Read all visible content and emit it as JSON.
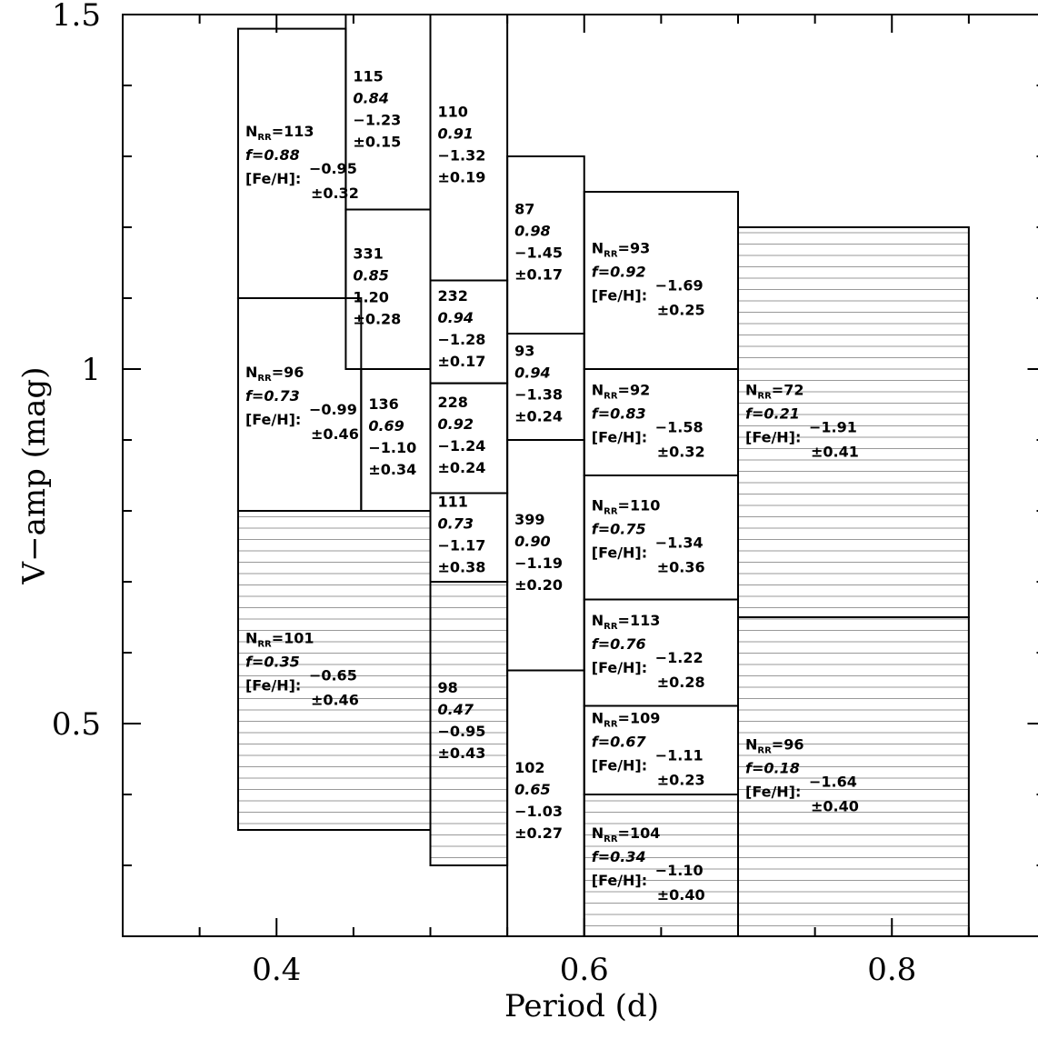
{
  "chart_data": {
    "type": "box-grid",
    "xlabel": "Period (d)",
    "ylabel": "V−amp (mag)",
    "xlim": [
      0.3,
      0.9
    ],
    "ylim": [
      0.2,
      1.5
    ],
    "xticks": [
      0.4,
      0.6,
      0.8
    ],
    "yticks": [
      0.5,
      1,
      1.5
    ],
    "xminorticks": [
      0.35,
      0.45,
      0.5,
      0.55,
      0.65,
      0.7,
      0.75,
      0.85
    ],
    "yminorticks": [
      0.3,
      0.4,
      0.6,
      0.7,
      0.8,
      0.9,
      1.1,
      1.2,
      1.3,
      1.4
    ],
    "labels": {
      "n": "N",
      "n_sub": "RR",
      "eq": "=",
      "f": "f=",
      "feh": "[Fe/H]:"
    },
    "bins": [
      {
        "period": [
          0.375,
          0.445
        ],
        "amp": [
          1.1,
          1.48
        ],
        "n": "113",
        "f": "0.88",
        "feh": "−0.95",
        "sigma": "±0.32",
        "labeled": true,
        "hatched": false
      },
      {
        "period": [
          0.445,
          0.5
        ],
        "amp": [
          1.225,
          1.5
        ],
        "n": "115",
        "f": "0.84",
        "feh": "−1.23",
        "sigma": "±0.15",
        "labeled": false,
        "hatched": false
      },
      {
        "period": [
          0.445,
          0.5
        ],
        "amp": [
          1.0,
          1.225
        ],
        "n": "331",
        "f": "0.85",
        "feh": "1.20",
        "sigma": "±0.28",
        "labeled": false,
        "hatched": false
      },
      {
        "period": [
          0.375,
          0.455
        ],
        "amp": [
          0.8,
          1.1
        ],
        "n": "96",
        "f": "0.73",
        "feh": "−0.99",
        "sigma": "±0.46",
        "labeled": true,
        "hatched": false
      },
      {
        "period": [
          0.455,
          0.5
        ],
        "amp": [
          0.8,
          1.0
        ],
        "n": "136",
        "f": "0.69",
        "feh": "−1.10",
        "sigma": "±0.34",
        "labeled": false,
        "hatched": false
      },
      {
        "period": [
          0.375,
          0.5
        ],
        "amp": [
          0.35,
          0.8
        ],
        "n": "101",
        "f": "0.35",
        "feh": "−0.65",
        "sigma": "±0.46",
        "labeled": true,
        "hatched": true
      },
      {
        "period": [
          0.5,
          0.55
        ],
        "amp": [
          1.125,
          1.5
        ],
        "n": "110",
        "f": "0.91",
        "feh": "−1.32",
        "sigma": "±0.19",
        "labeled": false,
        "hatched": false
      },
      {
        "period": [
          0.5,
          0.55
        ],
        "amp": [
          0.98,
          1.125
        ],
        "n": "232",
        "f": "0.94",
        "feh": "−1.28",
        "sigma": "±0.17",
        "labeled": false,
        "hatched": false
      },
      {
        "period": [
          0.5,
          0.55
        ],
        "amp": [
          0.825,
          0.98
        ],
        "n": "228",
        "f": "0.92",
        "feh": "−1.24",
        "sigma": "±0.24",
        "labeled": false,
        "hatched": false
      },
      {
        "period": [
          0.5,
          0.55
        ],
        "amp": [
          0.7,
          0.825
        ],
        "n": "111",
        "f": "0.73",
        "feh": "−1.17",
        "sigma": "±0.38",
        "labeled": false,
        "hatched": false
      },
      {
        "period": [
          0.5,
          0.55
        ],
        "amp": [
          0.3,
          0.7
        ],
        "n": "98",
        "f": "0.47",
        "feh": "−0.95",
        "sigma": "±0.43",
        "labeled": false,
        "hatched": true
      },
      {
        "period": [
          0.55,
          0.6
        ],
        "amp": [
          1.05,
          1.3
        ],
        "n": "87",
        "f": "0.98",
        "feh": "−1.45",
        "sigma": "±0.17",
        "labeled": false,
        "hatched": false
      },
      {
        "period": [
          0.55,
          0.6
        ],
        "amp": [
          0.9,
          1.05
        ],
        "n": "93",
        "f": "0.94",
        "feh": "−1.38",
        "sigma": "±0.24",
        "labeled": false,
        "hatched": false
      },
      {
        "period": [
          0.55,
          0.6
        ],
        "amp": [
          0.575,
          0.9
        ],
        "n": "399",
        "f": "0.90",
        "feh": "−1.19",
        "sigma": "±0.20",
        "labeled": false,
        "hatched": false
      },
      {
        "period": [
          0.55,
          0.6
        ],
        "amp": [
          0.2,
          0.575
        ],
        "n": "102",
        "f": "0.65",
        "feh": "−1.03",
        "sigma": "±0.27",
        "labeled": false,
        "hatched": false
      },
      {
        "period": [
          0.6,
          0.7
        ],
        "amp": [
          1.0,
          1.25
        ],
        "n": "93",
        "f": "0.92",
        "feh": "−1.69",
        "sigma": "±0.25",
        "labeled": true,
        "hatched": false
      },
      {
        "period": [
          0.6,
          0.7
        ],
        "amp": [
          0.85,
          1.0
        ],
        "n": "92",
        "f": "0.83",
        "feh": "−1.58",
        "sigma": "±0.32",
        "labeled": true,
        "hatched": false
      },
      {
        "period": [
          0.6,
          0.7
        ],
        "amp": [
          0.675,
          0.85
        ],
        "n": "110",
        "f": "0.75",
        "feh": "−1.34",
        "sigma": "±0.36",
        "labeled": true,
        "hatched": false
      },
      {
        "period": [
          0.6,
          0.7
        ],
        "amp": [
          0.525,
          0.675
        ],
        "n": "113",
        "f": "0.76",
        "feh": "−1.22",
        "sigma": "±0.28",
        "labeled": true,
        "hatched": false
      },
      {
        "period": [
          0.6,
          0.7
        ],
        "amp": [
          0.4,
          0.525
        ],
        "n": "109",
        "f": "0.67",
        "feh": "−1.11",
        "sigma": "±0.23",
        "labeled": true,
        "hatched": false
      },
      {
        "period": [
          0.6,
          0.7
        ],
        "amp": [
          0.2,
          0.4
        ],
        "n": "104",
        "f": "0.34",
        "feh": "−1.10",
        "sigma": "±0.40",
        "labeled": true,
        "hatched": true
      },
      {
        "period": [
          0.7,
          0.85
        ],
        "amp": [
          0.65,
          1.2
        ],
        "n": "72",
        "f": "0.21",
        "feh": "−1.91",
        "sigma": "±0.41",
        "labeled": true,
        "hatched": true
      },
      {
        "period": [
          0.7,
          0.85
        ],
        "amp": [
          0.2,
          0.65
        ],
        "n": "96",
        "f": "0.18",
        "feh": "−1.64",
        "sigma": "±0.40",
        "labeled": true,
        "hatched": true
      }
    ]
  }
}
